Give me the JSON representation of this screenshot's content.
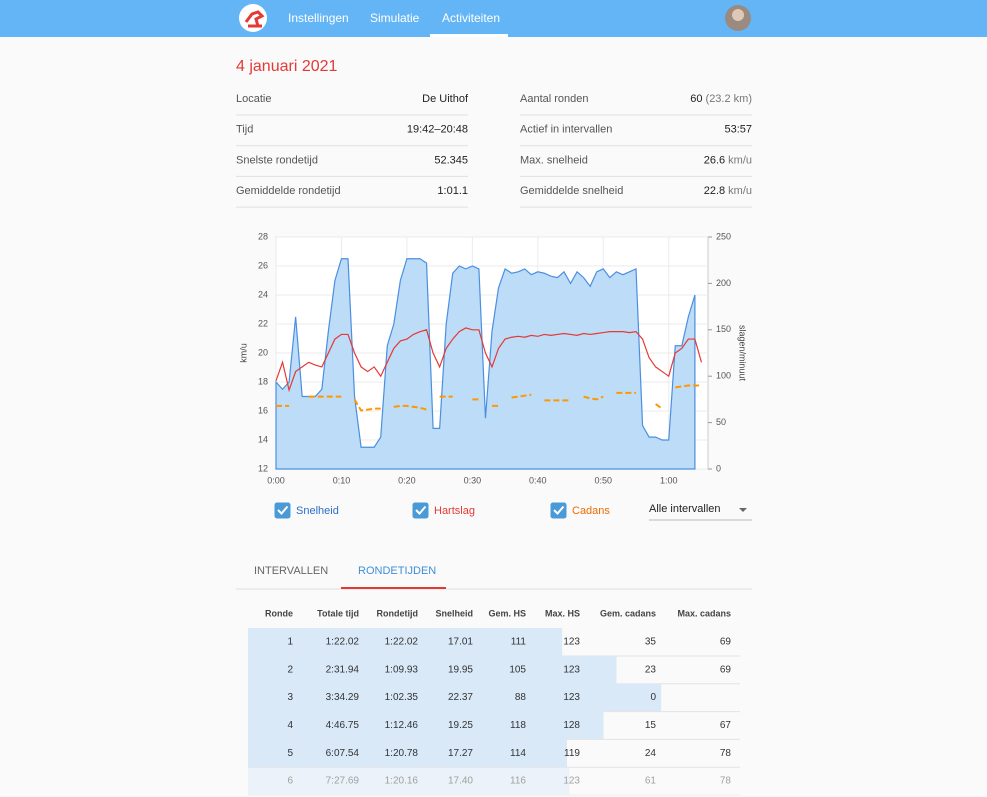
{
  "navbar": {
    "items": [
      "Instellingen",
      "Simulatie",
      "Activiteiten"
    ],
    "active": 2
  },
  "title": "4 januari 2021",
  "summary": {
    "left": [
      {
        "label": "Locatie",
        "value": "De Uithof"
      },
      {
        "label": "Tijd",
        "value": "19:42–20:48"
      },
      {
        "label": "Snelste rondetijd",
        "value": "52.345"
      },
      {
        "label": "Gemiddelde rondetijd",
        "value": "1:01.1"
      }
    ],
    "right": [
      {
        "label": "Aantal ronden",
        "value": "60",
        "unit": "(23.2 km)"
      },
      {
        "label": "Actief in intervallen",
        "value": "53:57"
      },
      {
        "label": "Max. snelheid",
        "value": "26.6",
        "unit": "km/u"
      },
      {
        "label": "Gemiddelde snelheid",
        "value": "22.8",
        "unit": "km/u"
      }
    ]
  },
  "chart_data": {
    "type": "line",
    "ylabel": "km/u",
    "y2label": "slagen/minuut",
    "x": [
      0,
      1,
      2,
      3,
      4,
      5,
      6,
      7,
      8,
      9,
      10,
      11,
      12,
      13,
      14,
      15,
      16,
      17,
      18,
      19,
      20,
      21,
      22,
      23,
      24,
      25,
      26,
      27,
      28,
      29,
      30,
      31,
      32,
      33,
      34,
      35,
      36,
      37,
      38,
      39,
      40,
      41,
      42,
      43,
      44,
      45,
      46,
      47,
      48,
      49,
      50,
      51,
      52,
      53,
      54,
      55,
      56,
      57,
      58,
      59,
      60,
      61,
      62,
      63,
      64,
      65
    ],
    "xlim": [
      0,
      66
    ],
    "xticks": [
      {
        "value": 0,
        "label": "0:00"
      },
      {
        "value": 10,
        "label": "0:10"
      },
      {
        "value": 20,
        "label": "0:20"
      },
      {
        "value": 30,
        "label": "0:30"
      },
      {
        "value": 40,
        "label": "0:40"
      },
      {
        "value": 50,
        "label": "0:50"
      },
      {
        "value": 60,
        "label": "1:00"
      }
    ],
    "ylim": [
      12,
      28
    ],
    "yticks": [
      12,
      14,
      16,
      18,
      20,
      22,
      24,
      26,
      28
    ],
    "y2lim": [
      0,
      250
    ],
    "y2ticks": [
      0,
      50,
      100,
      150,
      200,
      250
    ],
    "grid": true,
    "series": [
      {
        "name": "Snelheid",
        "color": "#4a8fe0",
        "fill": "#bcdcf7",
        "label_color": "#2a6fc9",
        "checked": true,
        "area": true,
        "values": [
          18,
          17.5,
          18,
          22.5,
          17,
          17,
          17,
          17.5,
          21.5,
          25,
          26.5,
          26.5,
          17,
          13.5,
          13.5,
          13.5,
          14.2,
          20.5,
          22,
          25,
          26.5,
          26.5,
          26.5,
          26.2,
          14.8,
          14.8,
          22,
          25.5,
          26,
          25.8,
          26,
          25.8,
          15.5,
          21.5,
          24.5,
          25.8,
          25.5,
          25.6,
          25.8,
          25.4,
          25.6,
          25.5,
          25.3,
          25.2,
          25.6,
          24.8,
          25.6,
          25.2,
          24.6,
          25.6,
          25.8,
          25.2,
          25.6,
          25.4,
          25.6,
          25.8,
          15,
          14.2,
          14.2,
          14,
          14,
          20.5,
          20.5,
          22.5,
          24,
          null
        ]
      },
      {
        "name": "Hartslag",
        "color": "#e53935",
        "label_color": "#e53935",
        "checked": true,
        "axis": "y2",
        "values": [
          95,
          115,
          85,
          105,
          110,
          115,
          112,
          110,
          125,
          140,
          145,
          145,
          125,
          110,
          105,
          110,
          100,
          115,
          130,
          138,
          140,
          145,
          148,
          150,
          125,
          110,
          130,
          140,
          148,
          152,
          150,
          150,
          125,
          110,
          130,
          140,
          142,
          143,
          142,
          144,
          143,
          145,
          144,
          145,
          146,
          145,
          144,
          146,
          145,
          146,
          147,
          148,
          148,
          148,
          147,
          148,
          140,
          120,
          110,
          105,
          100,
          125,
          130,
          140,
          140,
          115
        ]
      },
      {
        "name": "Cadans",
        "color": "#ff9800",
        "label_color": "#ef6c00",
        "checked": true,
        "axis": "y2",
        "dashed": true,
        "values": [
          68,
          68,
          68,
          null,
          null,
          78,
          78,
          78,
          78,
          78,
          78,
          null,
          75,
          63,
          64,
          65,
          65,
          null,
          67,
          68,
          68,
          67,
          66,
          64,
          null,
          78,
          78,
          78,
          null,
          null,
          75,
          75,
          null,
          68,
          68,
          null,
          77,
          78,
          79,
          80,
          null,
          74,
          74,
          74,
          74,
          74,
          null,
          78,
          76,
          75,
          78,
          null,
          82,
          82,
          82,
          82,
          null,
          null,
          70,
          65,
          null,
          88,
          89,
          90,
          90,
          90
        ]
      }
    ]
  },
  "dropdown": "Alle intervallen",
  "tabs": {
    "items": [
      "INTERVALLEN",
      "RONDETIJDEN"
    ],
    "active": 1
  },
  "table": {
    "columns": [
      "Ronde",
      "Totale tijd",
      "Rondetijd",
      "Snelheid",
      "Gem. HS",
      "Max. HS",
      "Gem. cadans",
      "Max. cadans"
    ],
    "bar_column": 3,
    "rows": [
      [
        "1",
        "1:22.02",
        "1:22.02",
        "17.01",
        "111",
        "123",
        "35",
        "69"
      ],
      [
        "2",
        "2:31.94",
        "1:09.93",
        "19.95",
        "105",
        "123",
        "23",
        "69"
      ],
      [
        "3",
        "3:34.29",
        "1:02.35",
        "22.37",
        "88",
        "123",
        "0",
        null
      ],
      [
        "4",
        "4:46.75",
        "1:12.46",
        "19.25",
        "118",
        "128",
        "15",
        "67"
      ],
      [
        "5",
        "6:07.54",
        "1:20.78",
        "17.27",
        "114",
        "119",
        "24",
        "78"
      ],
      [
        "6",
        "7:27.69",
        "1:20.16",
        "17.40",
        "116",
        "123",
        "61",
        "78"
      ]
    ]
  }
}
